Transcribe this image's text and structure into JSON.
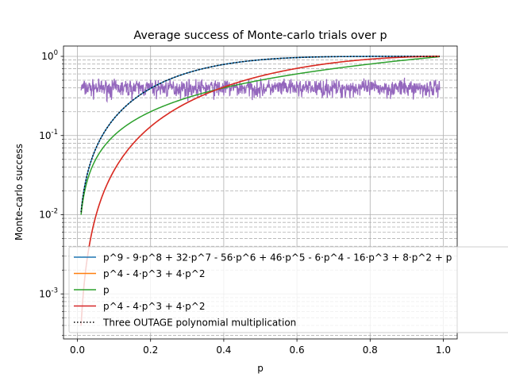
{
  "chart_data": {
    "type": "line",
    "title": "Average success of Monte-carlo trials over p",
    "xlabel": "p",
    "ylabel": "Monte-carlo success",
    "xlim": [
      -0.038,
      1.038
    ],
    "ylim": [
      0.00027,
      1.35
    ],
    "yscale": "log",
    "grid": "major and minor (y), major (x)",
    "legend_position": "lower-right",
    "x_ticks": [
      0.0,
      0.2,
      0.4,
      0.6,
      0.8,
      1.0
    ],
    "x_tick_labels": [
      "0.0",
      "0.2",
      "0.4",
      "0.6",
      "0.8",
      "1.0"
    ],
    "y_ticks": [
      0.001,
      0.01,
      0.1,
      1
    ],
    "y_tick_labels": [
      "10^{-3}",
      "10^{-2}",
      "10^{-1}",
      "10^{0}"
    ],
    "p_range": [
      0.01,
      0.99
    ],
    "series": [
      {
        "name": "p^9 - 9·p^8 + 32·p^7 - 56·p^6 + 46·p^5 - 6·p^4 - 16·p^3 + 8·p^2 + p",
        "color": "#1f77b4",
        "style": "solid",
        "x": [
          0.01,
          0.02,
          0.05,
          0.1,
          0.15,
          0.2,
          0.3,
          0.4,
          0.5,
          0.6,
          0.7,
          0.8,
          0.9,
          0.99
        ],
        "values": [
          0.0108,
          0.0232,
          0.0687,
          0.1618,
          0.2709,
          0.3844,
          0.5945,
          0.7622,
          0.8789,
          0.9495,
          0.9848,
          0.9977,
          0.99997,
          1.0
        ]
      },
      {
        "name": "p^4 - 4·p^3 + 4·p^2",
        "color": "#ff7f0e",
        "style": "solid",
        "x": [
          0.01,
          0.02,
          0.05,
          0.1,
          0.15,
          0.2,
          0.3,
          0.4,
          0.5,
          0.6,
          0.7,
          0.8,
          0.9,
          0.99
        ],
        "values": [
          0.000392,
          0.00154,
          0.00903,
          0.0361,
          0.0797,
          0.1296,
          0.2601,
          0.4096,
          0.5625,
          0.7056,
          0.8281,
          0.9216,
          0.9801,
          0.9998
        ]
      },
      {
        "name": "p",
        "color": "#2ca02c",
        "style": "solid",
        "x": [
          0.01,
          0.02,
          0.05,
          0.1,
          0.15,
          0.2,
          0.3,
          0.4,
          0.5,
          0.6,
          0.7,
          0.8,
          0.9,
          0.99
        ],
        "values": [
          0.01,
          0.02,
          0.05,
          0.1,
          0.15,
          0.2,
          0.3,
          0.4,
          0.5,
          0.6,
          0.7,
          0.8,
          0.9,
          0.99
        ]
      },
      {
        "name": "p^4 - 4·p^3 + 4·p^2",
        "color": "#d62728",
        "style": "solid",
        "x": [
          0.01,
          0.02,
          0.05,
          0.1,
          0.15,
          0.2,
          0.3,
          0.4,
          0.5,
          0.6,
          0.7,
          0.8,
          0.9,
          0.99
        ],
        "values": [
          0.000392,
          0.00154,
          0.00903,
          0.0361,
          0.0797,
          0.1296,
          0.2601,
          0.4096,
          0.5625,
          0.7056,
          0.8281,
          0.9216,
          0.9801,
          0.9998
        ]
      },
      {
        "name": " Three OUTAGE polynomial multiplication",
        "color": "#000000",
        "style": "dotted",
        "x": [
          0.01,
          0.02,
          0.05,
          0.1,
          0.15,
          0.2,
          0.3,
          0.4,
          0.5,
          0.6,
          0.7,
          0.8,
          0.9,
          0.99
        ],
        "values": [
          0.0108,
          0.0232,
          0.0687,
          0.1618,
          0.2709,
          0.3844,
          0.5945,
          0.7622,
          0.8789,
          0.9495,
          0.9848,
          0.9977,
          0.99997,
          1.0
        ]
      },
      {
        "name": "",
        "color": "#9467bd",
        "style": "solid",
        "in_legend": false,
        "noisy": true,
        "mean": 0.4,
        "min": 0.25,
        "max": 0.55,
        "x": [
          0.01,
          0.99
        ],
        "values": [
          0.4,
          0.4
        ]
      }
    ]
  }
}
